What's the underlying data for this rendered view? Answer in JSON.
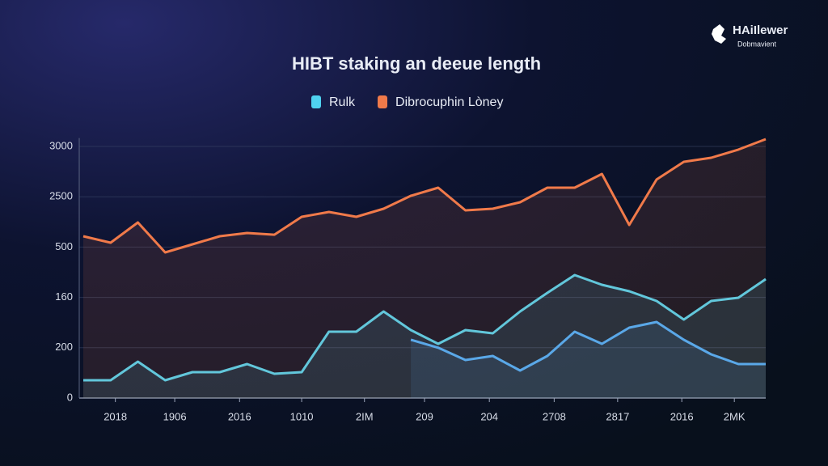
{
  "chart_data": {
    "type": "line",
    "title": "HIBT staking an deeue length",
    "brand": {
      "name": "HAiIlewer",
      "tagline": "Dobmavient"
    },
    "x": [
      0,
      4,
      8,
      12,
      16,
      20,
      24,
      28,
      32,
      36,
      40,
      44,
      48,
      52,
      56,
      60,
      64,
      68,
      72,
      76,
      80,
      84,
      88,
      92,
      96,
      100
    ],
    "xlim": [
      0,
      100
    ],
    "xticks": [
      {
        "value": 4.7,
        "label": "2018"
      },
      {
        "value": 13.4,
        "label": "1906"
      },
      {
        "value": 22.9,
        "label": "2016"
      },
      {
        "value": 32,
        "label": "1010"
      },
      {
        "value": 41.2,
        "label": "2IM"
      },
      {
        "value": 50,
        "label": "209"
      },
      {
        "value": 59.5,
        "label": "204"
      },
      {
        "value": 69,
        "label": "2708"
      },
      {
        "value": 78.3,
        "label": "2817"
      },
      {
        "value": 87.7,
        "label": "2016"
      },
      {
        "value": 95.4,
        "label": "2MK"
      }
    ],
    "ylim": [
      0,
      3100
    ],
    "yticks": [
      0,
      {
        "value": 600,
        "label": "200"
      },
      {
        "value": 1200,
        "label": "160"
      },
      {
        "value": 1800,
        "label": "500"
      },
      {
        "value": 2400,
        "label": "2500"
      },
      3000
    ],
    "grid": true,
    "legend": "top",
    "series": [
      {
        "name": "Rulk",
        "color": "#4fd2f0",
        "values": [
          212,
          212,
          434,
          212,
          309,
          309,
          405,
          289,
          309,
          791,
          791,
          1032,
          810,
          646,
          810,
          772,
          1032,
          1254,
          1466,
          1350,
          1273,
          1158,
          936,
          1158,
          1196,
          1418
        ]
      },
      {
        "name": "Dibrocuphin Lòney",
        "color": "#f07a4a",
        "values": [
          1929,
          1852,
          2093,
          1736,
          1833,
          1929,
          1968,
          1948,
          2161,
          2219,
          2161,
          2257,
          2412,
          2508,
          2238,
          2257,
          2334,
          2508,
          2508,
          2672,
          2064,
          2605,
          2817,
          2865,
          2962,
          3087
        ]
      },
      {
        "color": "#5aa8e8",
        "values": [
          null,
          null,
          null,
          null,
          null,
          null,
          null,
          null,
          null,
          null,
          null,
          null,
          695,
          600,
          453,
          502,
          328,
          502,
          791,
          646,
          839,
          907,
          695,
          521,
          405,
          405
        ]
      }
    ]
  }
}
